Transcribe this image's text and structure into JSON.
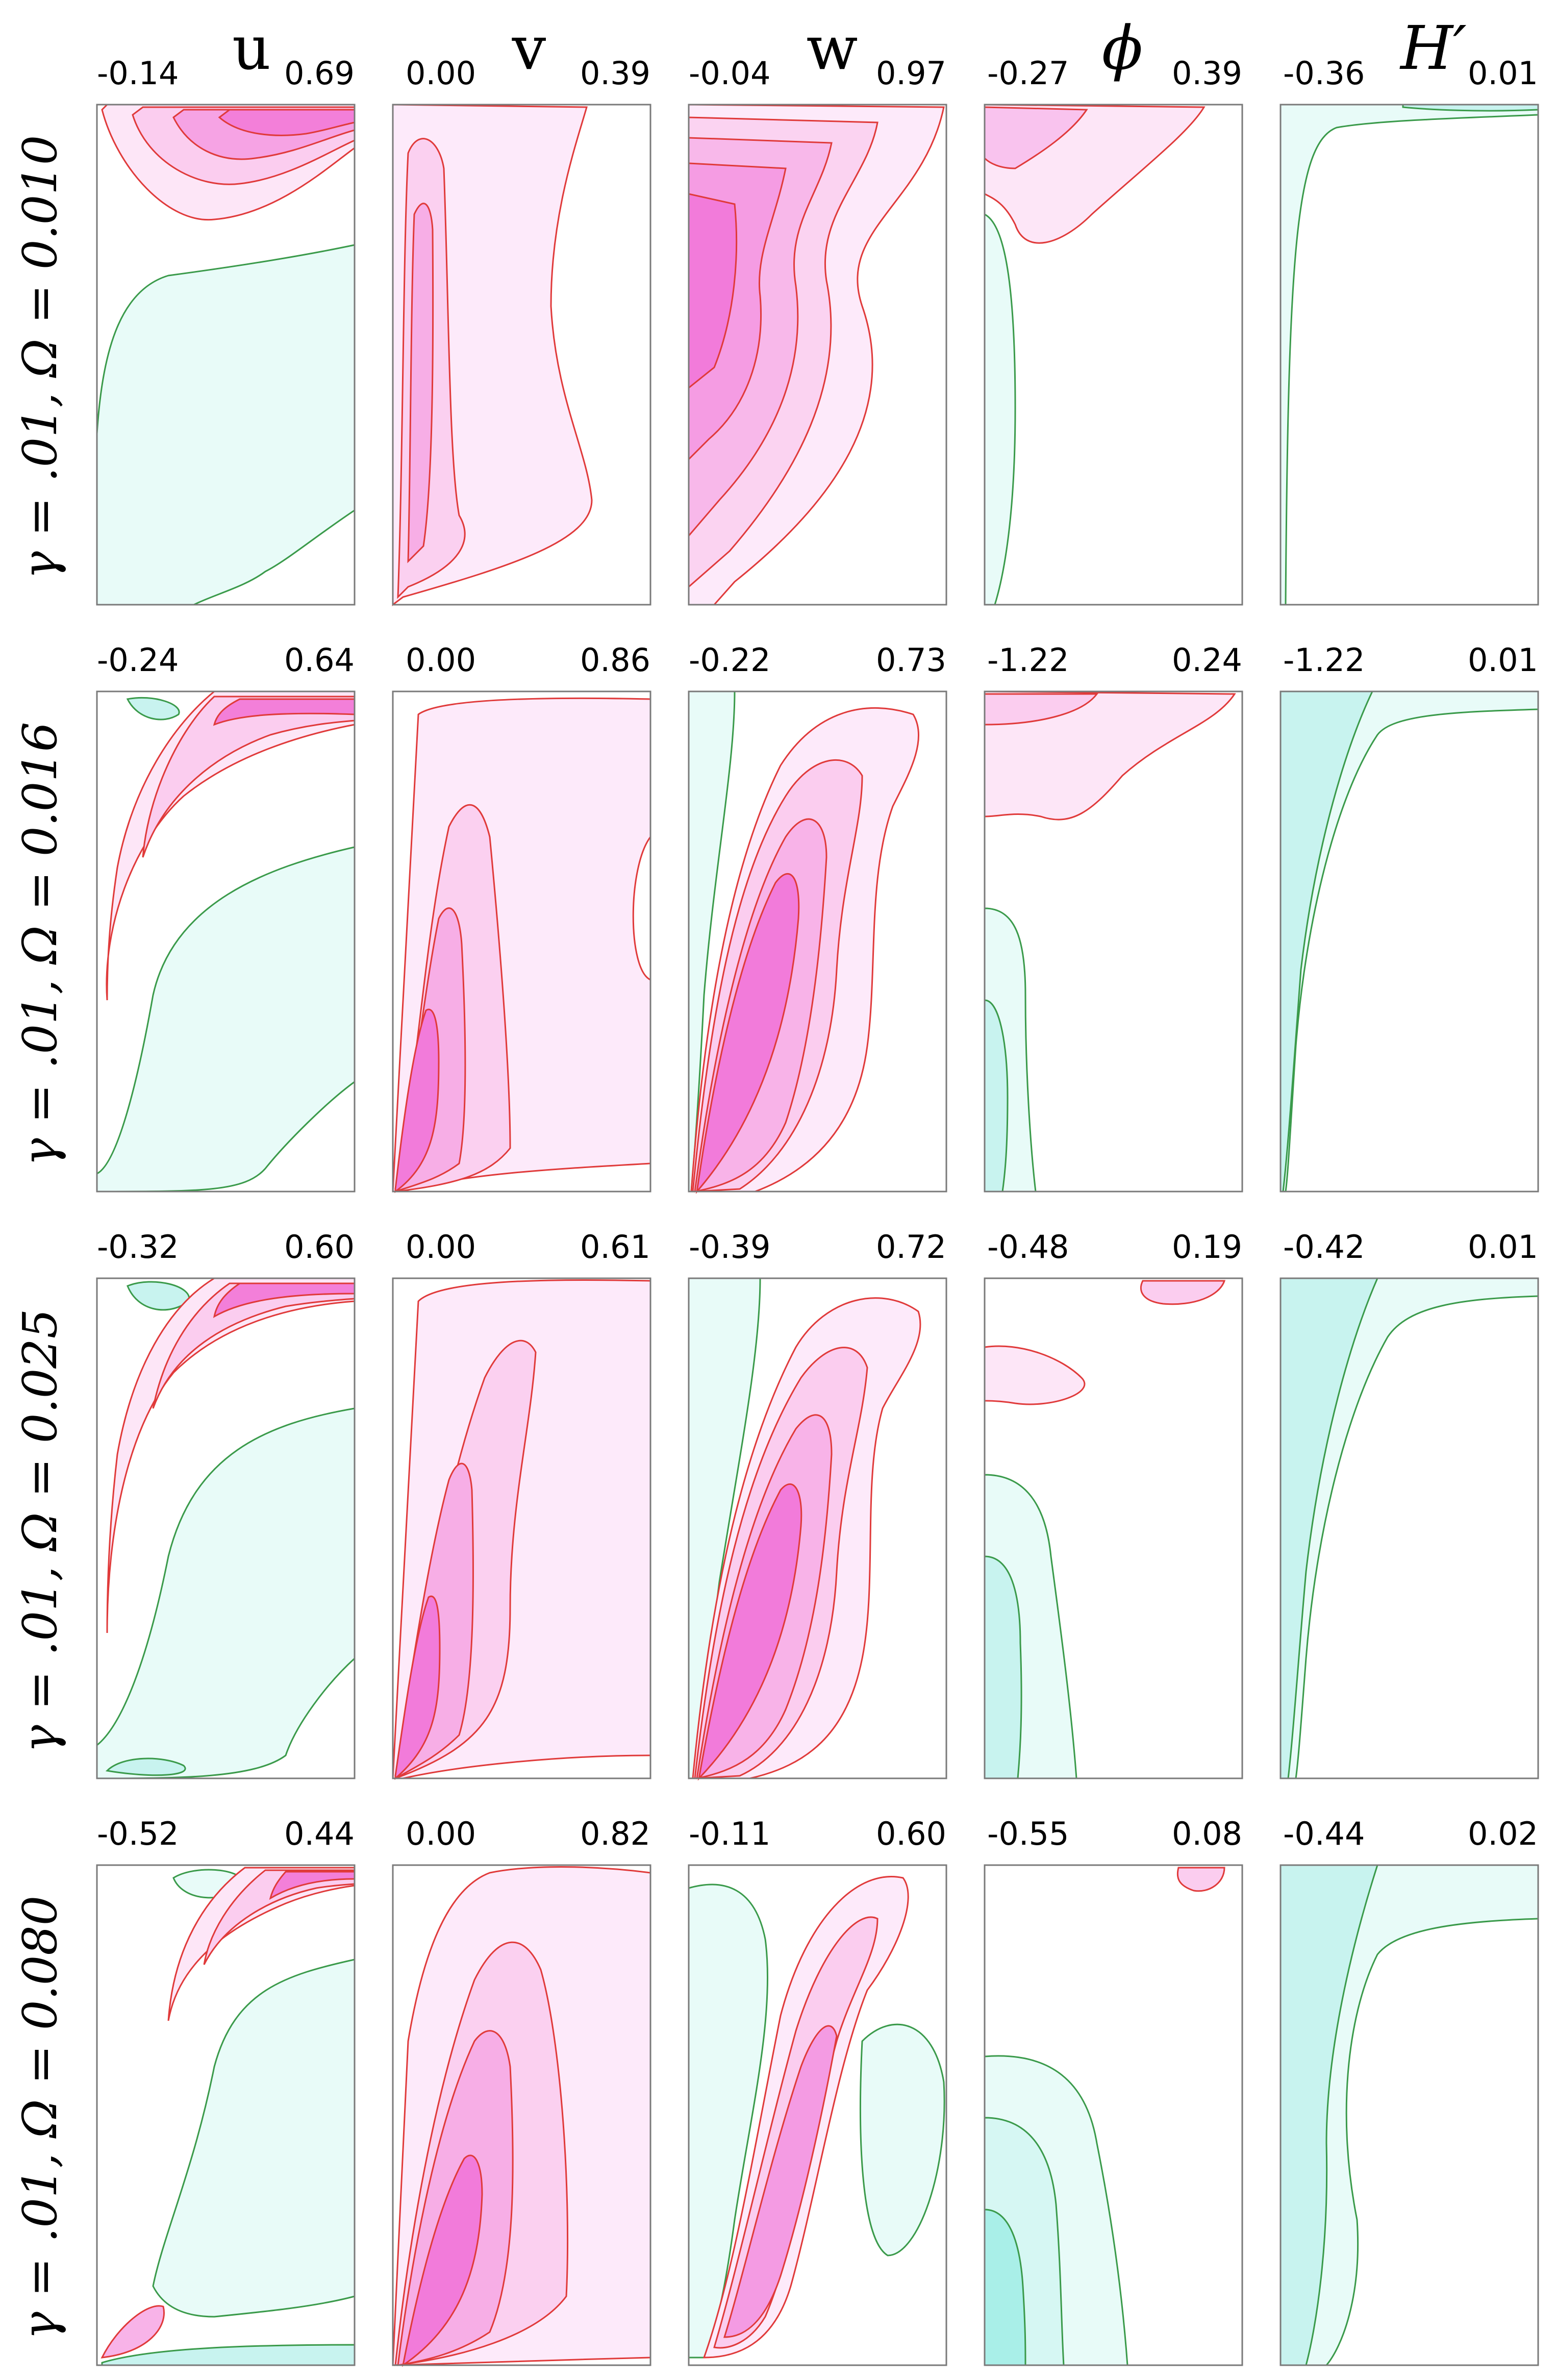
{
  "chart_data": {
    "type": "contour",
    "description_fields": [
      "u",
      "v",
      "w",
      "phi",
      "H_prime"
    ],
    "columns": [
      {
        "key": "u",
        "title": "u"
      },
      {
        "key": "v",
        "title": "v"
      },
      {
        "key": "w",
        "title": "w"
      },
      {
        "key": "phi",
        "title": "ϕ"
      },
      {
        "key": "Hp",
        "title": "H′"
      }
    ],
    "rows": [
      {
        "label": "γ = .01, Ω = 0.010",
        "panels": [
          {
            "min": "-0.14",
            "max": "0.69"
          },
          {
            "min": "0.00",
            "max": "0.39"
          },
          {
            "min": "-0.04",
            "max": "0.97"
          },
          {
            "min": "-0.27",
            "max": "0.39"
          },
          {
            "min": "-0.36",
            "max": "0.01"
          }
        ]
      },
      {
        "label": "γ = .01, Ω = 0.016",
        "panels": [
          {
            "min": "-0.24",
            "max": "0.64"
          },
          {
            "min": "0.00",
            "max": "0.86"
          },
          {
            "min": "-0.22",
            "max": "0.73"
          },
          {
            "min": "-1.22",
            "max": "0.24"
          },
          {
            "min": "-1.22",
            "max": "0.01"
          }
        ]
      },
      {
        "label": "γ = .01, Ω = 0.025",
        "panels": [
          {
            "min": "-0.32",
            "max": "0.60"
          },
          {
            "min": "0.00",
            "max": "0.61"
          },
          {
            "min": "-0.39",
            "max": "0.72"
          },
          {
            "min": "-0.48",
            "max": "0.19"
          },
          {
            "min": "-0.42",
            "max": "0.01"
          }
        ]
      },
      {
        "label": "γ = .01, Ω = 0.080",
        "panels": [
          {
            "min": "-0.52",
            "max": "0.44"
          },
          {
            "min": "0.00",
            "max": "0.82"
          },
          {
            "min": "-0.11",
            "max": "0.60"
          },
          {
            "min": "-0.55",
            "max": "0.08"
          },
          {
            "min": "-0.44",
            "max": "0.02"
          }
        ]
      }
    ],
    "colors": {
      "positive_fill_light": "#fdebf8",
      "positive_fill_mid": "#f9c6ee",
      "positive_fill_strong": "#f277dc",
      "positive_line": "#e03a3a",
      "negative_fill_light": "#e8fbf8",
      "negative_fill_mid": "#c8f3ef",
      "negative_fill_strong": "#9feee6",
      "negative_line": "#3a9a4a"
    }
  }
}
